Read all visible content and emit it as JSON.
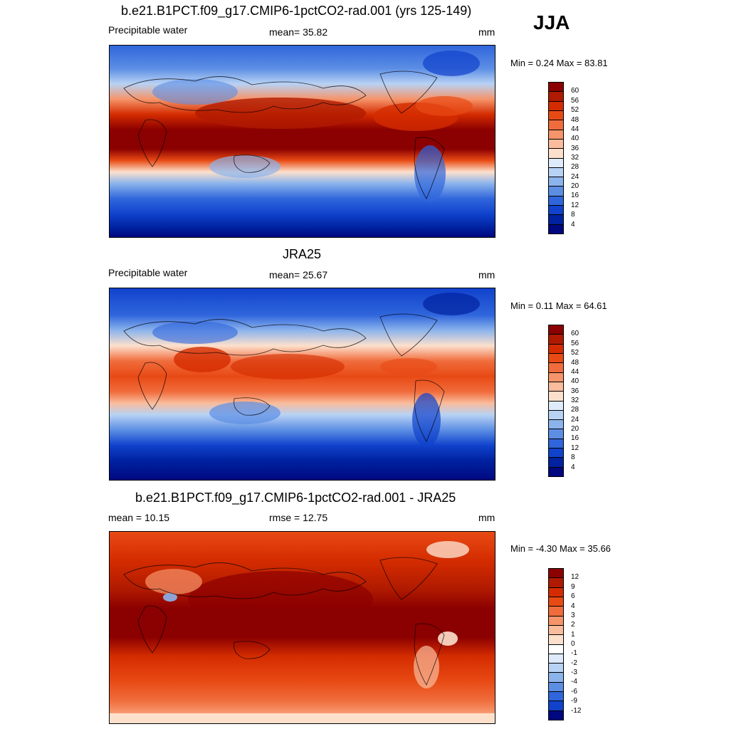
{
  "season": "JJA",
  "panels": [
    {
      "title": "b.e21.B1PCT.f09_g17.CMIP6-1pctCO2-rad.001 (yrs 125-149)",
      "left": "Precipitable water",
      "center": "mean=  35.82",
      "right": "mm",
      "minmax": "Min =   0.24 Max =  83.81",
      "colorbar": {
        "labels": [
          "60",
          "56",
          "52",
          "48",
          "44",
          "40",
          "36",
          "32",
          "28",
          "24",
          "20",
          "16",
          "12",
          "8",
          "4"
        ],
        "colors": [
          "#8b0000",
          "#b01a00",
          "#d42c00",
          "#e84a14",
          "#f06c3c",
          "#f6946a",
          "#f9bc9c",
          "#fde0cc",
          "#ddebfa",
          "#b8d2f4",
          "#8cb4ec",
          "#5c8ee4",
          "#3066dc",
          "#1042cc",
          "#0022a0",
          "#000880"
        ]
      },
      "mean_value": 35.82,
      "min_value": 0.24,
      "max_value": 83.81,
      "units": "mm"
    },
    {
      "title": "JRA25",
      "left": "Precipitable water",
      "center": "mean=  25.67",
      "right": "mm",
      "minmax": "Min =   0.11 Max =  64.61",
      "colorbar": {
        "labels": [
          "60",
          "56",
          "52",
          "48",
          "44",
          "40",
          "36",
          "32",
          "28",
          "24",
          "20",
          "16",
          "12",
          "8",
          "4"
        ],
        "colors": [
          "#8b0000",
          "#b01a00",
          "#d42c00",
          "#e84a14",
          "#f06c3c",
          "#f6946a",
          "#f9bc9c",
          "#fde0cc",
          "#ddebfa",
          "#b8d2f4",
          "#8cb4ec",
          "#5c8ee4",
          "#3066dc",
          "#1042cc",
          "#0022a0",
          "#000880"
        ]
      },
      "mean_value": 25.67,
      "min_value": 0.11,
      "max_value": 64.61,
      "units": "mm"
    },
    {
      "title": "b.e21.B1PCT.f09_g17.CMIP6-1pctCO2-rad.001 - JRA25",
      "left": "mean =  10.15",
      "center": "rmse =  12.75",
      "right": "mm",
      "minmax": "Min =  -4.30 Max =  35.66",
      "colorbar": {
        "labels": [
          "12",
          "9",
          "6",
          "4",
          "3",
          "2",
          "1",
          "0",
          "-1",
          "-2",
          "-3",
          "-4",
          "-6",
          "-9",
          "-12"
        ],
        "colors": [
          "#8b0000",
          "#b01a00",
          "#d42c00",
          "#e84a14",
          "#f06c3c",
          "#f6946a",
          "#f9bc9c",
          "#fde0cc",
          "#ffffff",
          "#ddebfa",
          "#b8d2f4",
          "#8cb4ec",
          "#5c8ee4",
          "#3066dc",
          "#1042cc",
          "#000880"
        ]
      },
      "mean_value": 10.15,
      "rmse_value": 12.75,
      "min_value": -4.3,
      "max_value": 35.66,
      "units": "mm"
    }
  ]
}
